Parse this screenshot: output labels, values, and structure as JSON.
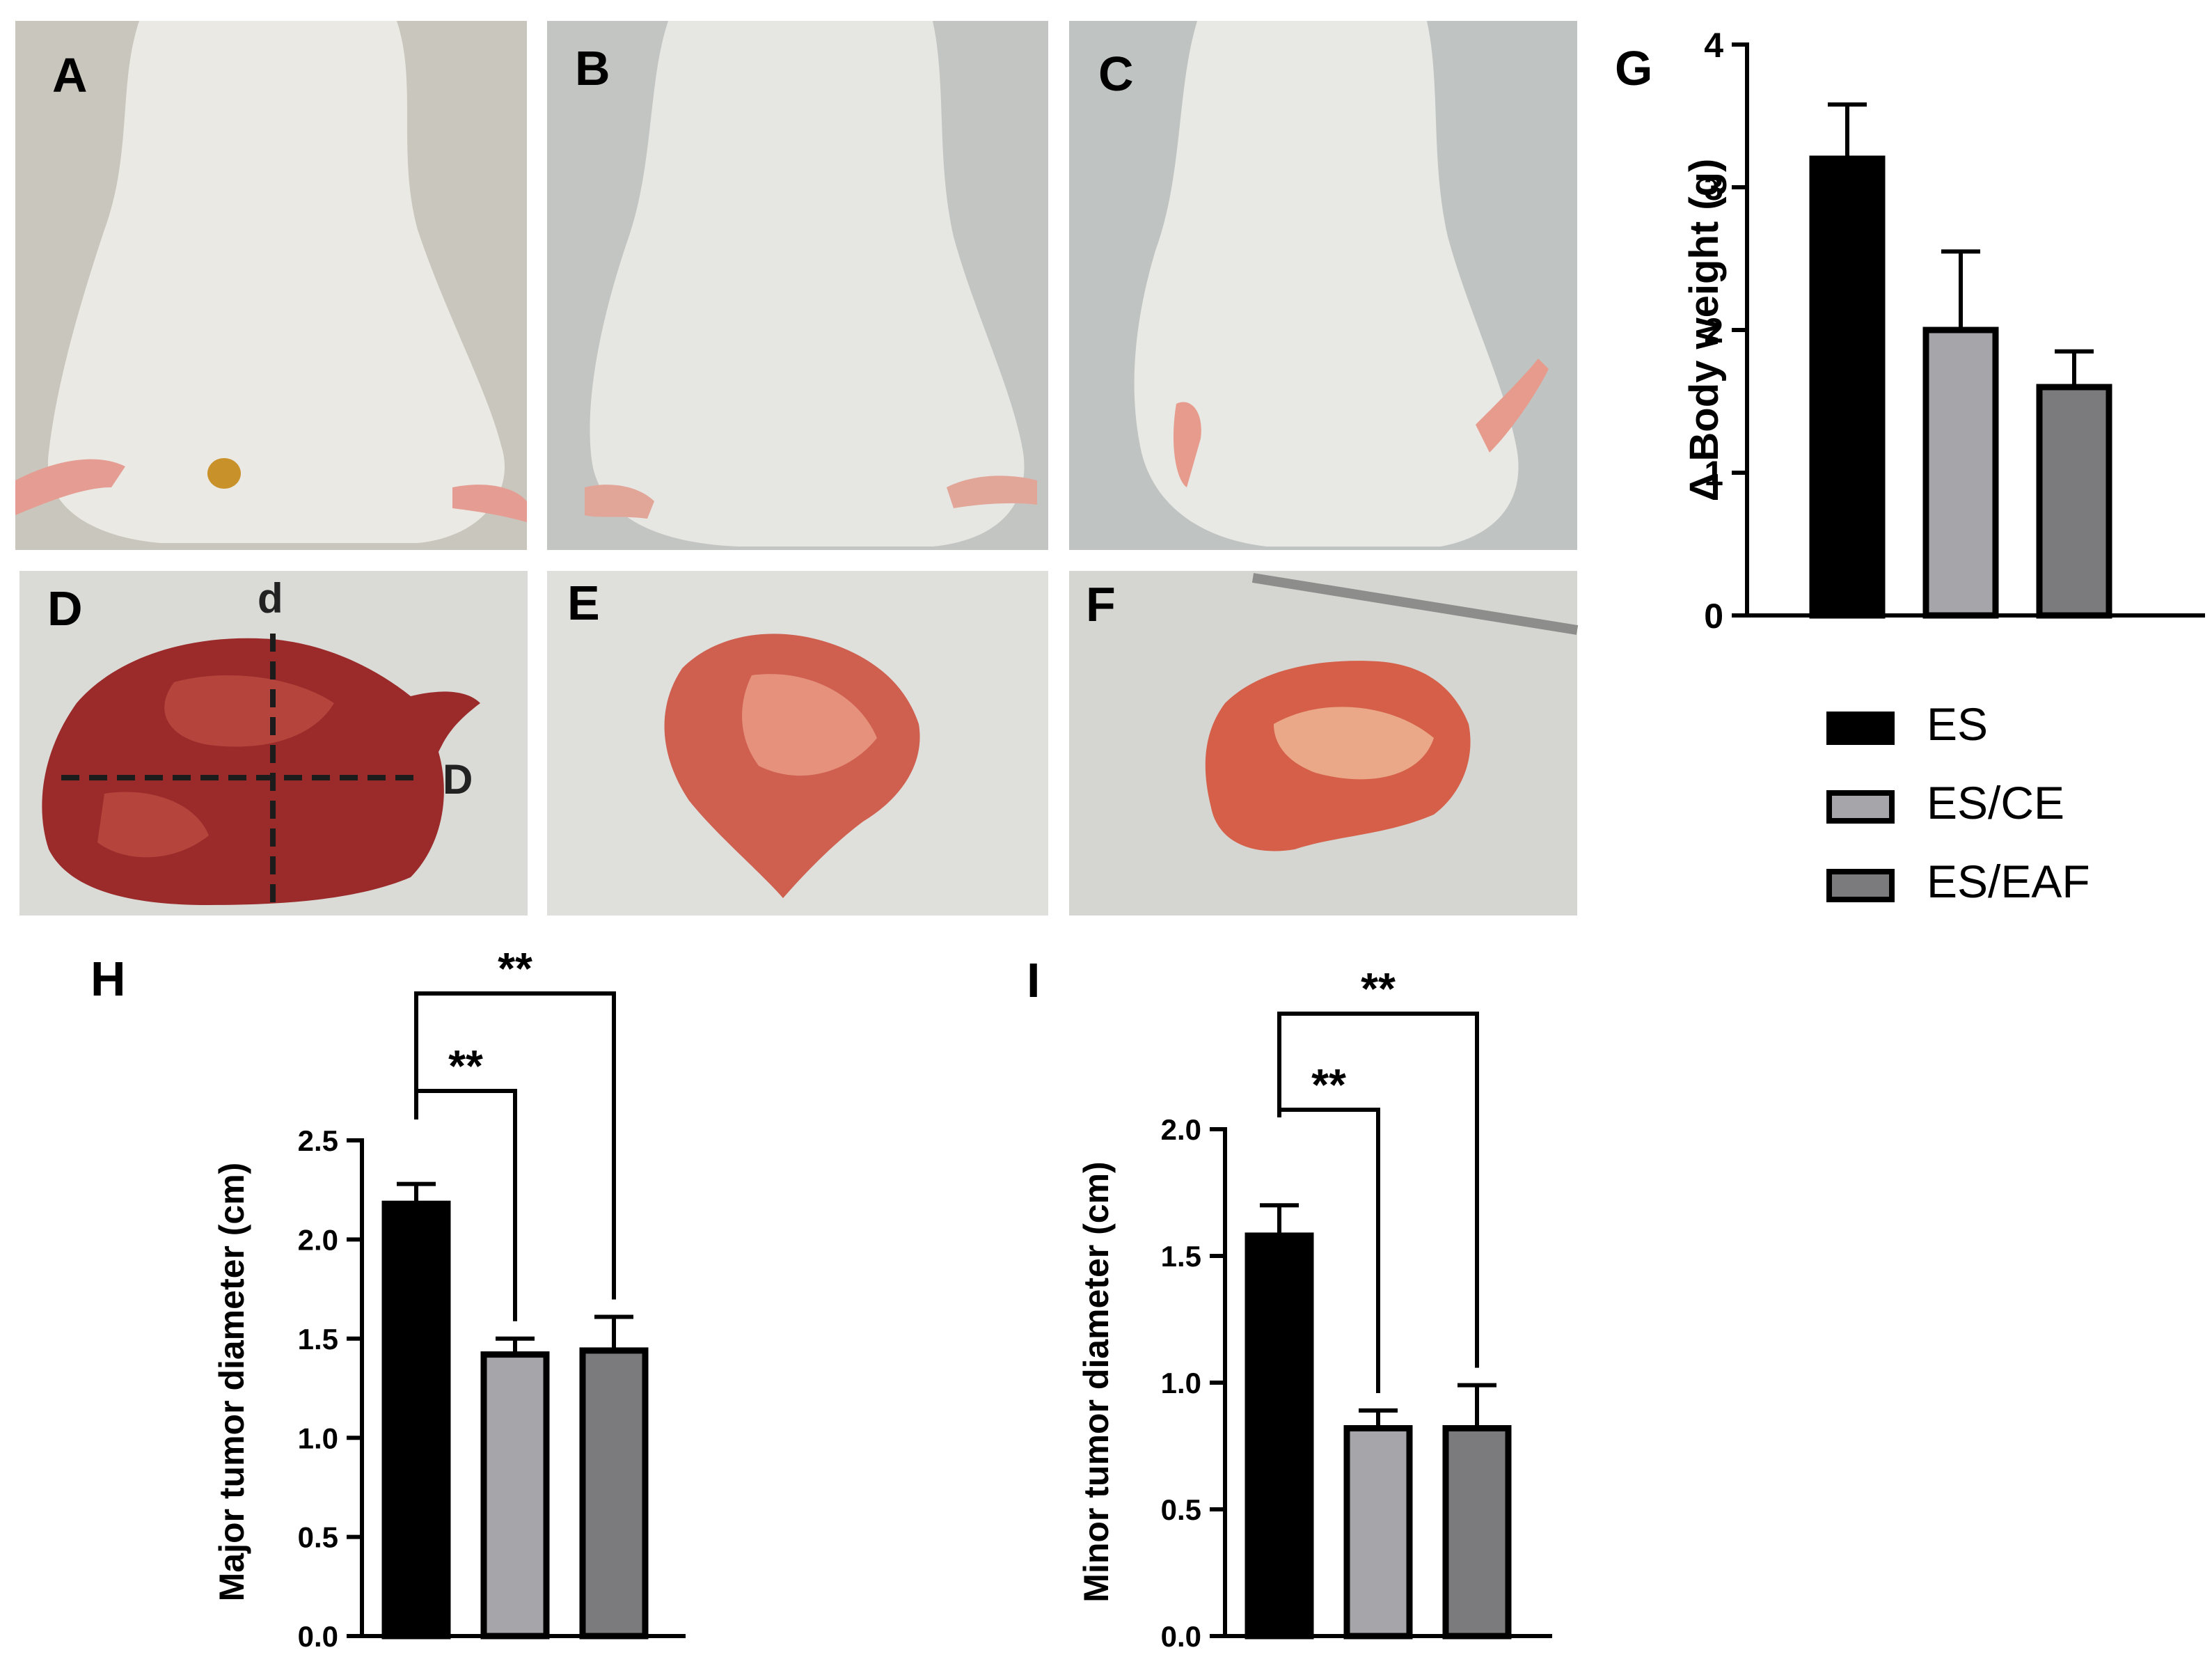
{
  "photo_panels": [
    {
      "label": "A",
      "subject": "mouse dorsal view with small tumor",
      "colors": {
        "bg": "#c9c6bd",
        "main": "#ebe9e3",
        "accent": "#c8912a"
      }
    },
    {
      "label": "B",
      "subject": "mouse dorsal view",
      "colors": {
        "bg": "#c3c5c2",
        "main": "#e6e6e3",
        "accent": "#e2a698"
      }
    },
    {
      "label": "C",
      "subject": "mouse dorsal view",
      "colors": {
        "bg": "#bfc4c2",
        "main": "#e8e8e4",
        "accent": "#e79b8c"
      }
    },
    {
      "label": "D",
      "subject": "excised tumor with diameter lines",
      "colors": {
        "bg": "#dadbd7",
        "main": "#9a2b2a",
        "accent": "#b5443c"
      }
    },
    {
      "label": "E",
      "subject": "excised tumor",
      "colors": {
        "bg": "#dfe0dc",
        "main": "#cf5f4f",
        "accent": "#e6917c"
      }
    },
    {
      "label": "F",
      "subject": "excised tumor",
      "colors": {
        "bg": "#d5d6d2",
        "main": "#d55f48",
        "accent": "#eaa888"
      }
    }
  ],
  "tumor_axis_labels": {
    "major": "D",
    "minor": "d"
  },
  "legend": {
    "items": [
      {
        "label": "ES",
        "color": "#000000"
      },
      {
        "label": "ES/CE",
        "color": "#a5a5aa"
      },
      {
        "label": "ES/EAF",
        "color": "#7b7b7e"
      }
    ]
  },
  "chart_data": [
    {
      "panel": "G",
      "type": "bar",
      "categories": [
        "ES",
        "ES/CE",
        "ES/EAF"
      ],
      "values": [
        3.2,
        2.0,
        1.6
      ],
      "errors": [
        0.38,
        0.55,
        0.25
      ],
      "ylabel": "Δ Body weight (g)",
      "ylim": [
        0,
        4
      ],
      "yticks": [
        "0",
        "1",
        "2",
        "3",
        "4"
      ],
      "colors": [
        "#000000",
        "#a5a5aa",
        "#7b7b7e"
      ],
      "significance": []
    },
    {
      "panel": "H",
      "type": "bar",
      "categories": [
        "ES",
        "ES/CE",
        "ES/EAF"
      ],
      "values": [
        2.18,
        1.42,
        1.44
      ],
      "errors": [
        0.1,
        0.08,
        0.17
      ],
      "ylabel": "Major tumor diameter (cm)",
      "ylim": [
        0,
        2.5
      ],
      "yticks": [
        "0.0",
        "0.5",
        "1.0",
        "1.5",
        "2.0",
        "2.5"
      ],
      "colors": [
        "#000000",
        "#a5a5aa",
        "#7b7b7e"
      ],
      "significance": [
        {
          "from": 0,
          "to": 1,
          "label": "**"
        },
        {
          "from": 0,
          "to": 2,
          "label": "**"
        }
      ]
    },
    {
      "panel": "I",
      "type": "bar",
      "categories": [
        "ES",
        "ES/CE",
        "ES/EAF"
      ],
      "values": [
        1.58,
        0.82,
        0.82
      ],
      "errors": [
        0.12,
        0.07,
        0.17
      ],
      "ylabel": "Minor tumor diameter (cm)",
      "ylim": [
        0,
        2.0
      ],
      "yticks": [
        "0.0",
        "0.5",
        "1.0",
        "1.5",
        "2.0"
      ],
      "colors": [
        "#000000",
        "#a5a5aa",
        "#7b7b7e"
      ],
      "significance": [
        {
          "from": 0,
          "to": 1,
          "label": "**"
        },
        {
          "from": 0,
          "to": 2,
          "label": "**"
        }
      ]
    }
  ]
}
